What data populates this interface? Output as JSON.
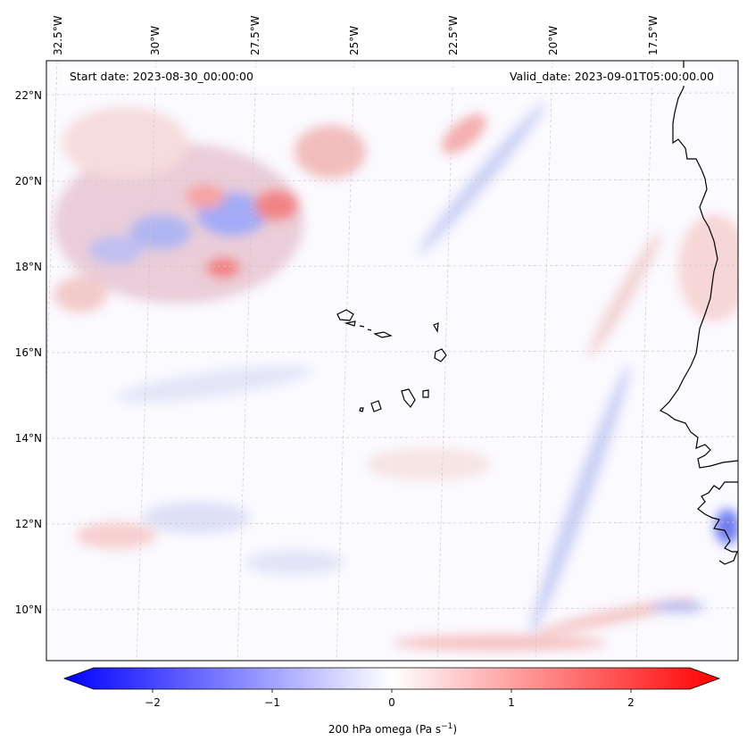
{
  "header": {
    "start_date": "Start date: 2023-08-30_00:00:00",
    "valid_date": "Valid_date: 2023-09-01T05:00:00.00"
  },
  "map": {
    "longitude_labels": [
      "32.5°W",
      "30°W",
      "27.5°W",
      "25°W",
      "22.5°W",
      "20°W",
      "17.5°W"
    ],
    "latitude_labels": [
      "22°N",
      "20°N",
      "18°N",
      "16°N",
      "14°N",
      "12°N",
      "10°N"
    ],
    "coastline_color": "#000000",
    "gridline_color": "#bfbfbf"
  },
  "colorbar": {
    "label_main": "200 hPa omega (Pa s",
    "label_exp": "−1",
    "label_close": ")",
    "ticks": [
      "−2",
      "−1",
      "0",
      "1",
      "2"
    ],
    "range": [
      -2.6,
      2.6
    ],
    "colormap": "bwr",
    "min_color": "#0000ff",
    "mid_color": "#ffffff",
    "max_color": "#ff0000"
  }
}
